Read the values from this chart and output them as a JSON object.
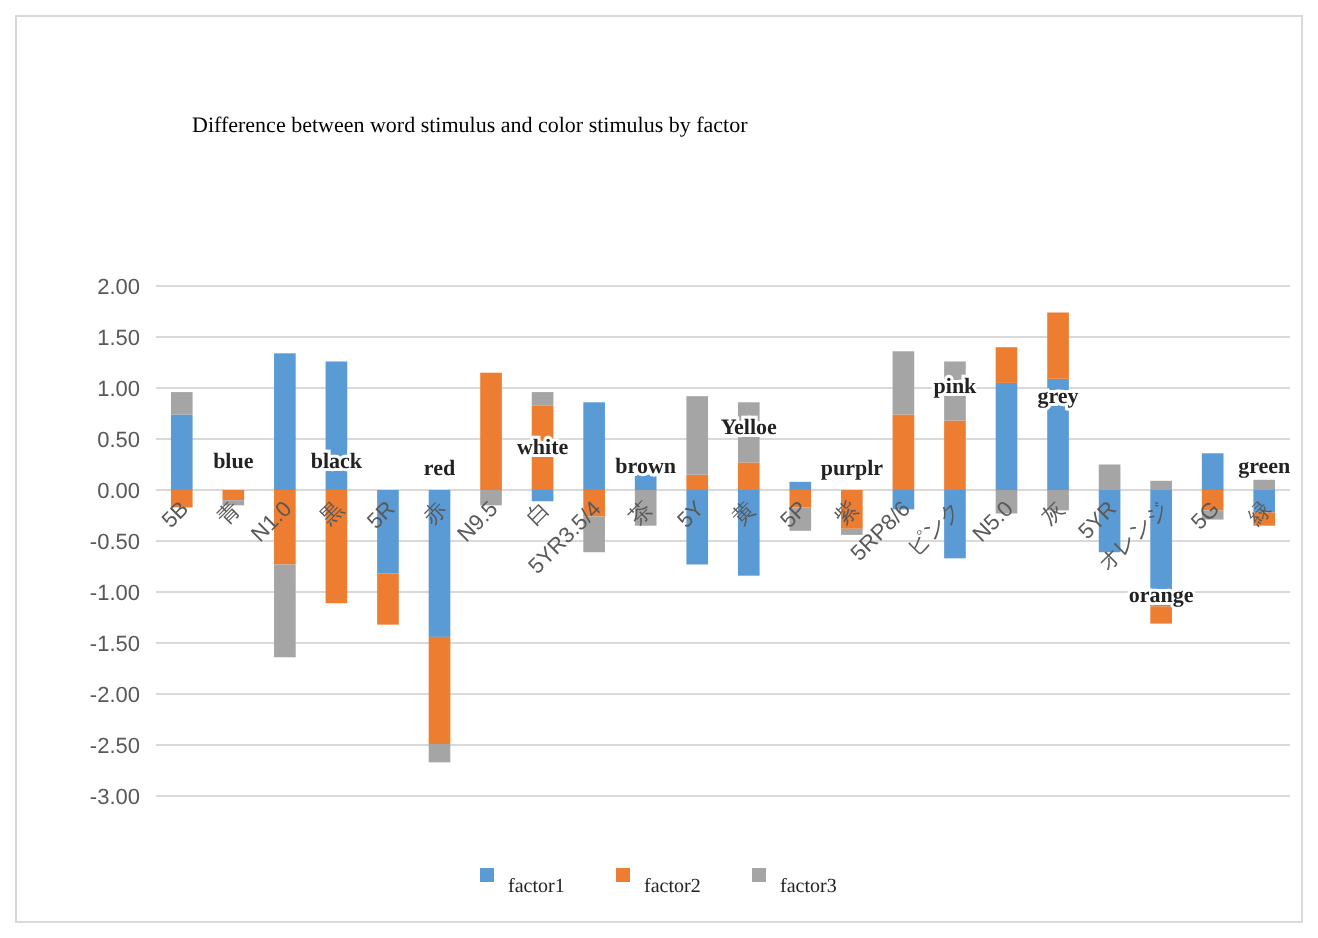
{
  "chart_data": {
    "type": "bar",
    "stacked": true,
    "title": "Difference between word stimulus and color stimulus by factor",
    "categories": [
      "5B",
      "青",
      "N1.0",
      "黒",
      "5R",
      "赤",
      "N9.5",
      "白",
      "5YR3.5/4",
      "茶",
      "5Y",
      "黄",
      "5P",
      "紫",
      "5RP8/6",
      "ピンク",
      "N5.0",
      "灰",
      "5YR",
      "オレンジ",
      "5G",
      "緑"
    ],
    "series": [
      {
        "name": "factor1",
        "color": "#5b9bd5",
        "values": [
          0.74,
          0,
          1.34,
          1.26,
          -0.82,
          -1.44,
          0,
          -0.11,
          0.86,
          0.15,
          -0.73,
          -0.84,
          0.08,
          0,
          -0.19,
          -0.67,
          1.05,
          1.09,
          -0.61,
          -1.14,
          0.36,
          -0.22
        ]
      },
      {
        "name": "factor2",
        "color": "#ed7d31",
        "values": [
          -0.17,
          -0.1,
          -0.73,
          -1.11,
          -0.5,
          -1.05,
          1.15,
          0.83,
          -0.26,
          null,
          0.15,
          0.27,
          -0.17,
          -0.38,
          0.74,
          0.68,
          0.35,
          0.65,
          0,
          -0.17,
          -0.2,
          -0.13
        ]
      },
      {
        "name": "factor3",
        "color": "#a5a5a5",
        "values": [
          0.22,
          -0.05,
          -0.91,
          0,
          0,
          -0.18,
          -0.15,
          0.13,
          -0.35,
          -0.35,
          0.77,
          0.59,
          -0.23,
          -0.06,
          0.62,
          0.58,
          -0.23,
          -0.2,
          0.25,
          0.09,
          -0.09,
          0.1
        ]
      }
    ],
    "ylim": [
      -3,
      2
    ],
    "yticks": [
      {
        "value": -3,
        "label": "-3.00"
      },
      {
        "value": -2.5,
        "label": "-2.50"
      },
      {
        "value": -2,
        "label": "-2.00"
      },
      {
        "value": -1.5,
        "label": "-1.50"
      },
      {
        "value": -1,
        "label": "-1.00"
      },
      {
        "value": -0.5,
        "label": "-0.50"
      },
      {
        "value": 0,
        "label": "0.00"
      },
      {
        "value": 0.5,
        "label": "0.50"
      },
      {
        "value": 1,
        "label": "1.00"
      },
      {
        "value": 1.5,
        "label": "1.50"
      },
      {
        "value": 2,
        "label": "2.00"
      }
    ],
    "grid": "y",
    "legend": "bottom",
    "annotations": [
      "blue",
      "black",
      "red",
      "white",
      "brown",
      "Yelloe",
      "purplr",
      "pink",
      "grey",
      "orange",
      "green"
    ]
  }
}
